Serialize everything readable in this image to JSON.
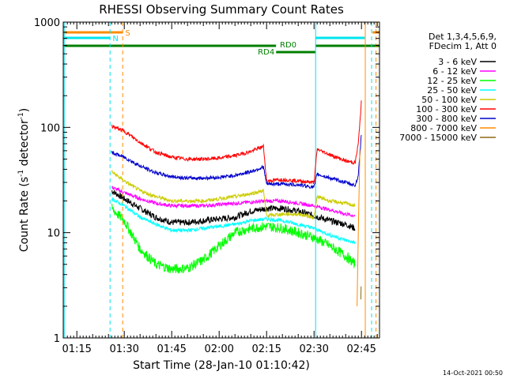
{
  "chart_data": {
    "type": "line",
    "title": "RHESSI Observing Summary Count Rates",
    "xlabel": "Start Time (28-Jan-10 01:10:42)",
    "ylabel_main": "Count Rate (s",
    "ylabel_sup1": "-1",
    "ylabel_mid": " detector",
    "ylabel_sup2": "-1",
    "ylabel_end": ")",
    "y_scale": "log",
    "ylim": [
      1,
      1000
    ],
    "xlim_minutes": [
      70.7,
      170.7
    ],
    "x_ticks": [
      {
        "t": 75,
        "label": "01:15"
      },
      {
        "t": 90,
        "label": "01:30"
      },
      {
        "t": 105,
        "label": "01:45"
      },
      {
        "t": 120,
        "label": "02:00"
      },
      {
        "t": 135,
        "label": "02:15"
      },
      {
        "t": 150,
        "label": "02:30"
      },
      {
        "t": 165,
        "label": "02:45"
      }
    ],
    "y_ticks": [
      {
        "v": 1,
        "label": "1"
      },
      {
        "v": 10,
        "label": "10"
      },
      {
        "v": 100,
        "label": "100"
      },
      {
        "v": 1000,
        "label": "1000"
      }
    ],
    "legend_header": [
      "Det 1,3,4,5,6,9,",
      "FDecim 1, Att 0"
    ],
    "legend_position": "right",
    "series": [
      {
        "name": "3 - 6 keV",
        "color": "#000000",
        "points": [
          [
            86,
            25
          ],
          [
            90,
            21
          ],
          [
            95,
            17
          ],
          [
            100,
            14
          ],
          [
            105,
            12.5
          ],
          [
            110,
            12.5
          ],
          [
            115,
            13
          ],
          [
            120,
            13.5
          ],
          [
            125,
            14
          ],
          [
            130,
            16
          ],
          [
            135,
            17
          ],
          [
            140,
            17
          ],
          [
            145,
            16
          ],
          [
            150,
            14.5
          ],
          [
            155,
            13
          ],
          [
            160,
            12
          ],
          [
            163,
            11
          ]
        ]
      },
      {
        "name": "6 - 12 keV",
        "color": "#ff00ff",
        "points": [
          [
            86,
            27
          ],
          [
            90,
            24
          ],
          [
            95,
            21
          ],
          [
            100,
            19
          ],
          [
            105,
            18
          ],
          [
            110,
            18
          ],
          [
            115,
            18
          ],
          [
            120,
            18.5
          ],
          [
            125,
            19
          ],
          [
            130,
            19.5
          ],
          [
            135,
            20
          ],
          [
            140,
            20
          ],
          [
            145,
            19
          ],
          [
            150,
            18
          ],
          [
            155,
            16.5
          ],
          [
            160,
            15
          ],
          [
            163,
            14.5
          ]
        ]
      },
      {
        "name": "12 - 25 keV",
        "color": "#00ff00",
        "points": [
          [
            86,
            17
          ],
          [
            90,
            13
          ],
          [
            95,
            7
          ],
          [
            100,
            5
          ],
          [
            105,
            4.5
          ],
          [
            110,
            4.6
          ],
          [
            115,
            5.5
          ],
          [
            120,
            7.5
          ],
          [
            125,
            10
          ],
          [
            130,
            11
          ],
          [
            135,
            11.5
          ],
          [
            140,
            11
          ],
          [
            145,
            10
          ],
          [
            150,
            9
          ],
          [
            155,
            7.5
          ],
          [
            160,
            6
          ],
          [
            163,
            5
          ]
        ]
      },
      {
        "name": "25 - 50 keV",
        "color": "#00ffff",
        "points": [
          [
            86,
            21
          ],
          [
            90,
            18
          ],
          [
            95,
            14
          ],
          [
            100,
            12
          ],
          [
            105,
            10.5
          ],
          [
            110,
            10.5
          ],
          [
            115,
            11
          ],
          [
            120,
            11.5
          ],
          [
            125,
            12
          ],
          [
            130,
            13
          ],
          [
            135,
            13.5
          ],
          [
            140,
            13
          ],
          [
            145,
            12
          ],
          [
            150,
            11
          ],
          [
            155,
            9.5
          ],
          [
            160,
            8.5
          ],
          [
            163,
            8
          ]
        ]
      },
      {
        "name": "50 - 100 keV",
        "color": "#cccc00",
        "points": [
          [
            86,
            38
          ],
          [
            90,
            31
          ],
          [
            95,
            25
          ],
          [
            100,
            22
          ],
          [
            105,
            20
          ],
          [
            110,
            20
          ],
          [
            115,
            20
          ],
          [
            120,
            21
          ],
          [
            125,
            22
          ],
          [
            130,
            23.5
          ],
          [
            134,
            25
          ],
          [
            135,
            14.5
          ],
          [
            140,
            15
          ],
          [
            145,
            15
          ],
          [
            150,
            14
          ],
          [
            151,
            22
          ],
          [
            155,
            20
          ],
          [
            160,
            19
          ],
          [
            163,
            18
          ]
        ]
      },
      {
        "name": "100 - 300 keV",
        "color": "#ff0000",
        "points": [
          [
            86,
            103
          ],
          [
            90,
            92
          ],
          [
            95,
            72
          ],
          [
            100,
            58
          ],
          [
            105,
            52
          ],
          [
            110,
            50
          ],
          [
            115,
            50
          ],
          [
            120,
            51
          ],
          [
            125,
            54
          ],
          [
            130,
            59
          ],
          [
            134,
            66
          ],
          [
            135,
            31
          ],
          [
            140,
            32
          ],
          [
            145,
            31
          ],
          [
            150,
            30
          ],
          [
            151,
            62
          ],
          [
            155,
            55
          ],
          [
            160,
            48
          ],
          [
            163,
            46
          ],
          [
            164,
            70
          ],
          [
            165,
            180
          ]
        ]
      },
      {
        "name": "300 - 800 keV",
        "color": "#0000cc",
        "points": [
          [
            86,
            58
          ],
          [
            90,
            52
          ],
          [
            95,
            43
          ],
          [
            100,
            37
          ],
          [
            105,
            34
          ],
          [
            110,
            33
          ],
          [
            115,
            33
          ],
          [
            120,
            33.5
          ],
          [
            125,
            35
          ],
          [
            130,
            38
          ],
          [
            134,
            42
          ],
          [
            135,
            29
          ],
          [
            140,
            29
          ],
          [
            145,
            28.5
          ],
          [
            150,
            27
          ],
          [
            151,
            36
          ],
          [
            155,
            33
          ],
          [
            160,
            30
          ],
          [
            163,
            28
          ],
          [
            164,
            35
          ],
          [
            165,
            90
          ]
        ]
      },
      {
        "name": "800 - 7000 keV",
        "color": "#ff8c00",
        "points": [
          [
            163.6,
            2
          ],
          [
            164,
            10
          ],
          [
            164.5,
            60
          ]
        ]
      },
      {
        "name": "7000 - 15000 keV",
        "color": "#8b6914",
        "points": [
          [
            164.8,
            2.4
          ],
          [
            164.9,
            3.2
          ]
        ]
      }
    ],
    "annotations": {
      "s_label": "S",
      "n_label": "N",
      "rd0_label": "RD0",
      "rd4_label": "RD4"
    },
    "footer_date": "14-Oct-2021 00:50",
    "colors": {
      "saa_orange": "#ff8c00",
      "night_cyan": "#00e5ee",
      "decim_green": "#008000"
    }
  }
}
